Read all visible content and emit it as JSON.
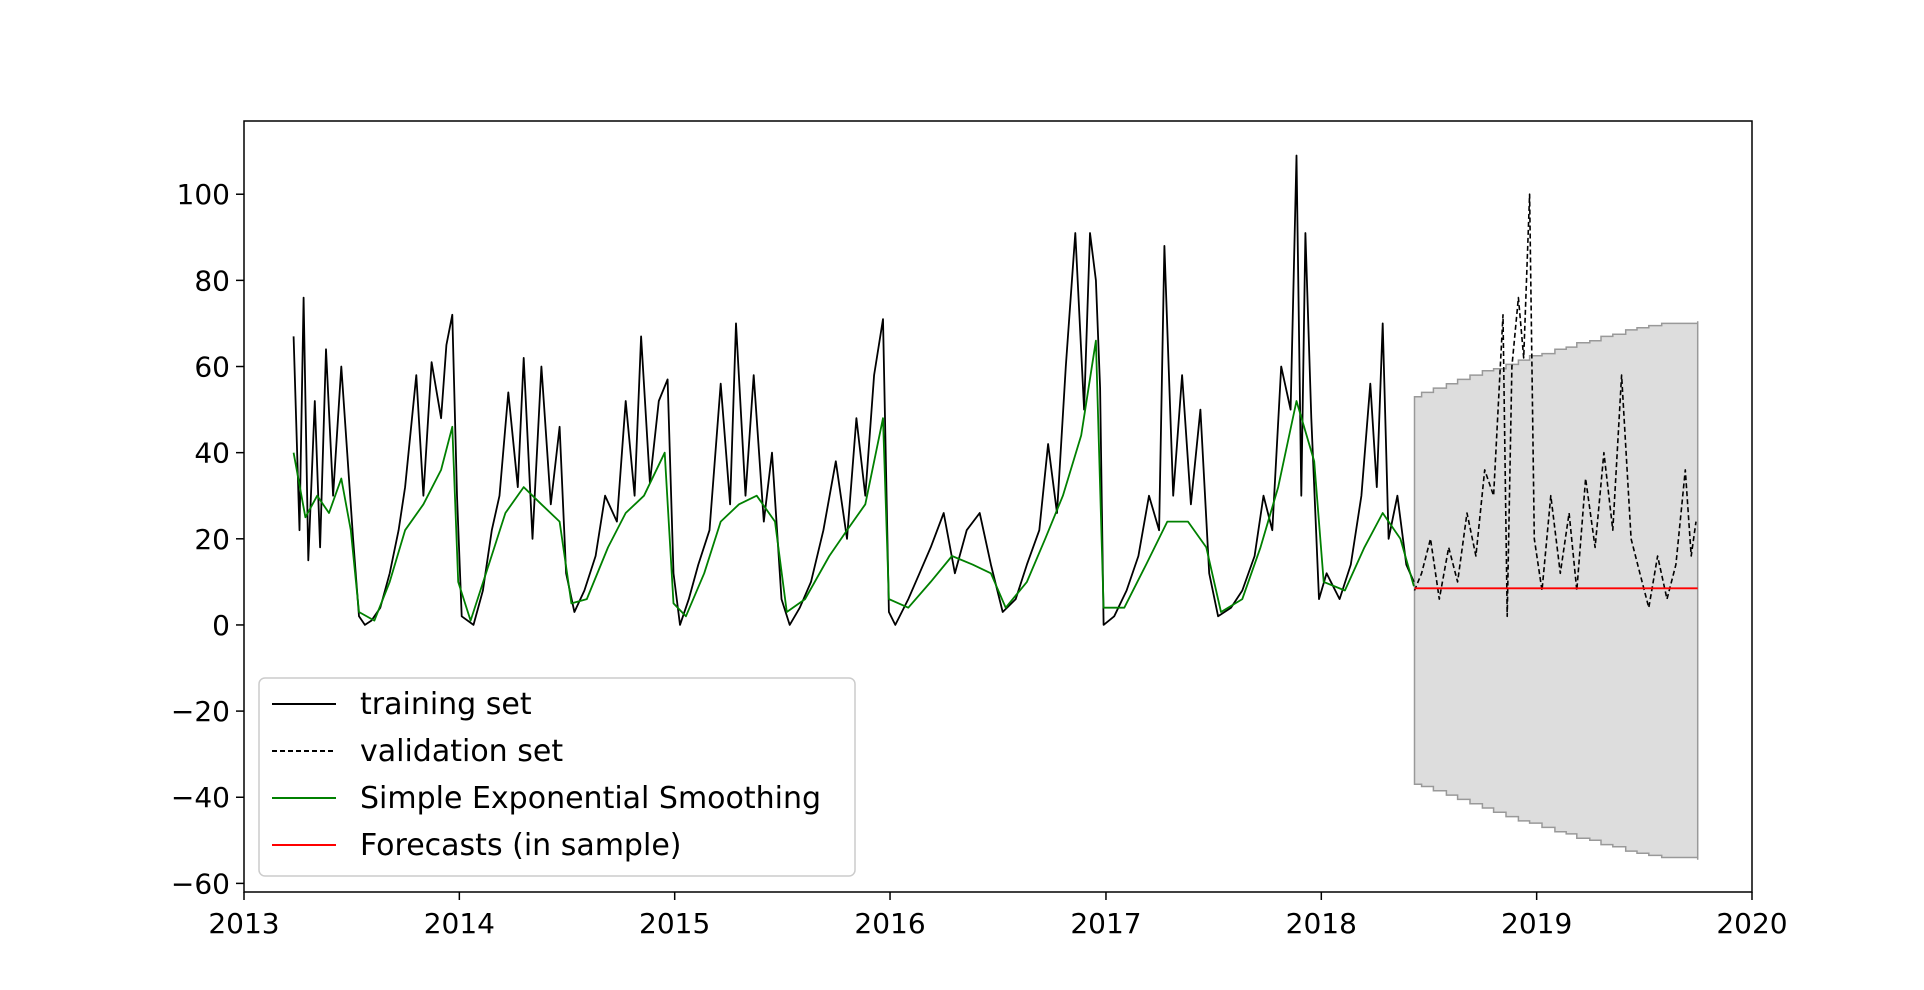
{
  "chart_data": {
    "type": "line",
    "title": "",
    "xlabel": "",
    "ylabel": "",
    "xlim": [
      "2013-01-01",
      "2020-01-01"
    ],
    "ylim": [
      -62,
      117
    ],
    "x_ticks": [
      {
        "value": "2013-01-01",
        "label": "2013"
      },
      {
        "value": "2014-01-01",
        "label": "2014"
      },
      {
        "value": "2015-01-01",
        "label": "2015"
      },
      {
        "value": "2016-01-01",
        "label": "2016"
      },
      {
        "value": "2017-01-01",
        "label": "2017"
      },
      {
        "value": "2018-01-01",
        "label": "2018"
      },
      {
        "value": "2019-01-01",
        "label": "2019"
      },
      {
        "value": "2020-01-01",
        "label": "2020"
      }
    ],
    "y_ticks": [
      {
        "value": 100,
        "label": "100"
      },
      {
        "value": 80,
        "label": "80"
      },
      {
        "value": 60,
        "label": "60"
      },
      {
        "value": 40,
        "label": "40"
      },
      {
        "value": 20,
        "label": "20"
      },
      {
        "value": 0,
        "label": "0"
      },
      {
        "value": -20,
        "label": "−20"
      },
      {
        "value": -40,
        "label": "−40"
      },
      {
        "value": -60,
        "label": "−60"
      }
    ],
    "grid": false,
    "legend_position": "lower-left",
    "series": [
      {
        "name": "training set",
        "style": "solid",
        "color": "#000000",
        "points": [
          [
            "2013-03-26",
            67
          ],
          [
            "2013-04-05",
            22
          ],
          [
            "2013-04-12",
            76
          ],
          [
            "2013-04-20",
            15
          ],
          [
            "2013-05-01",
            52
          ],
          [
            "2013-05-10",
            18
          ],
          [
            "2013-05-20",
            64
          ],
          [
            "2013-06-01",
            30
          ],
          [
            "2013-06-15",
            60
          ],
          [
            "2013-06-25",
            40
          ],
          [
            "2013-07-05",
            20
          ],
          [
            "2013-07-15",
            2
          ],
          [
            "2013-07-25",
            0
          ],
          [
            "2013-08-05",
            1
          ],
          [
            "2013-08-20",
            4
          ],
          [
            "2013-09-05",
            12
          ],
          [
            "2013-09-20",
            22
          ],
          [
            "2013-10-01",
            32
          ],
          [
            "2013-10-20",
            58
          ],
          [
            "2013-11-01",
            30
          ],
          [
            "2013-11-15",
            61
          ],
          [
            "2013-12-01",
            48
          ],
          [
            "2013-12-10",
            65
          ],
          [
            "2013-12-20",
            72
          ],
          [
            "2013-12-28",
            30
          ],
          [
            "2014-01-05",
            2
          ],
          [
            "2014-01-25",
            0
          ],
          [
            "2014-02-10",
            8
          ],
          [
            "2014-02-25",
            22
          ],
          [
            "2014-03-10",
            30
          ],
          [
            "2014-03-25",
            54
          ],
          [
            "2014-04-10",
            32
          ],
          [
            "2014-04-20",
            62
          ],
          [
            "2014-05-05",
            20
          ],
          [
            "2014-05-20",
            60
          ],
          [
            "2014-06-05",
            28
          ],
          [
            "2014-06-20",
            46
          ],
          [
            "2014-07-01",
            12
          ],
          [
            "2014-07-15",
            3
          ],
          [
            "2014-08-01",
            8
          ],
          [
            "2014-08-20",
            16
          ],
          [
            "2014-09-05",
            30
          ],
          [
            "2014-09-25",
            24
          ],
          [
            "2014-10-10",
            52
          ],
          [
            "2014-10-25",
            30
          ],
          [
            "2014-11-05",
            67
          ],
          [
            "2014-11-20",
            33
          ],
          [
            "2014-12-05",
            52
          ],
          [
            "2014-12-20",
            57
          ],
          [
            "2014-12-30",
            12
          ],
          [
            "2015-01-10",
            0
          ],
          [
            "2015-01-25",
            6
          ],
          [
            "2015-02-10",
            14
          ],
          [
            "2015-03-01",
            22
          ],
          [
            "2015-03-20",
            56
          ],
          [
            "2015-04-05",
            28
          ],
          [
            "2015-04-15",
            70
          ],
          [
            "2015-05-01",
            30
          ],
          [
            "2015-05-15",
            58
          ],
          [
            "2015-06-01",
            24
          ],
          [
            "2015-06-15",
            40
          ],
          [
            "2015-07-01",
            6
          ],
          [
            "2015-07-15",
            0
          ],
          [
            "2015-08-01",
            4
          ],
          [
            "2015-08-20",
            10
          ],
          [
            "2015-09-10",
            22
          ],
          [
            "2015-10-01",
            38
          ],
          [
            "2015-10-20",
            20
          ],
          [
            "2015-11-05",
            48
          ],
          [
            "2015-11-20",
            30
          ],
          [
            "2015-12-05",
            58
          ],
          [
            "2015-12-20",
            71
          ],
          [
            "2015-12-30",
            3
          ],
          [
            "2016-01-10",
            0
          ],
          [
            "2016-02-01",
            6
          ],
          [
            "2016-02-20",
            12
          ],
          [
            "2016-03-10",
            18
          ],
          [
            "2016-04-01",
            26
          ],
          [
            "2016-04-20",
            12
          ],
          [
            "2016-05-10",
            22
          ],
          [
            "2016-06-01",
            26
          ],
          [
            "2016-06-20",
            14
          ],
          [
            "2016-07-10",
            3
          ],
          [
            "2016-08-01",
            6
          ],
          [
            "2016-08-20",
            14
          ],
          [
            "2016-09-10",
            22
          ],
          [
            "2016-09-25",
            42
          ],
          [
            "2016-10-10",
            26
          ],
          [
            "2016-10-25",
            60
          ],
          [
            "2016-11-10",
            91
          ],
          [
            "2016-11-25",
            50
          ],
          [
            "2016-12-05",
            91
          ],
          [
            "2016-12-15",
            80
          ],
          [
            "2016-12-22",
            55
          ],
          [
            "2016-12-28",
            0
          ],
          [
            "2017-01-15",
            2
          ],
          [
            "2017-02-05",
            8
          ],
          [
            "2017-02-25",
            16
          ],
          [
            "2017-03-15",
            30
          ],
          [
            "2017-04-01",
            22
          ],
          [
            "2017-04-10",
            88
          ],
          [
            "2017-04-25",
            30
          ],
          [
            "2017-05-10",
            58
          ],
          [
            "2017-05-25",
            28
          ],
          [
            "2017-06-10",
            50
          ],
          [
            "2017-06-25",
            12
          ],
          [
            "2017-07-10",
            2
          ],
          [
            "2017-08-01",
            4
          ],
          [
            "2017-08-20",
            8
          ],
          [
            "2017-09-10",
            16
          ],
          [
            "2017-09-25",
            30
          ],
          [
            "2017-10-10",
            22
          ],
          [
            "2017-10-25",
            60
          ],
          [
            "2017-11-10",
            50
          ],
          [
            "2017-11-20",
            109
          ],
          [
            "2017-11-28",
            30
          ],
          [
            "2017-12-05",
            91
          ],
          [
            "2017-12-15",
            48
          ],
          [
            "2017-12-28",
            6
          ],
          [
            "2018-01-10",
            12
          ],
          [
            "2018-02-01",
            6
          ],
          [
            "2018-02-20",
            14
          ],
          [
            "2018-03-10",
            30
          ],
          [
            "2018-03-25",
            56
          ],
          [
            "2018-04-05",
            32
          ],
          [
            "2018-04-15",
            70
          ],
          [
            "2018-04-25",
            20
          ],
          [
            "2018-05-10",
            30
          ],
          [
            "2018-05-25",
            14
          ],
          [
            "2018-06-07",
            10
          ]
        ]
      },
      {
        "name": "validation set",
        "style": "dashed",
        "color": "#000000",
        "points": [
          [
            "2018-06-08",
            8
          ],
          [
            "2018-06-20",
            12
          ],
          [
            "2018-07-05",
            20
          ],
          [
            "2018-07-20",
            6
          ],
          [
            "2018-08-05",
            18
          ],
          [
            "2018-08-20",
            10
          ],
          [
            "2018-09-05",
            26
          ],
          [
            "2018-09-20",
            16
          ],
          [
            "2018-10-05",
            36
          ],
          [
            "2018-10-20",
            30
          ],
          [
            "2018-11-05",
            72
          ],
          [
            "2018-11-12",
            2
          ],
          [
            "2018-11-20",
            60
          ],
          [
            "2018-12-01",
            76
          ],
          [
            "2018-12-10",
            62
          ],
          [
            "2018-12-20",
            100
          ],
          [
            "2018-12-28",
            20
          ],
          [
            "2019-01-10",
            8
          ],
          [
            "2019-01-25",
            30
          ],
          [
            "2019-02-10",
            12
          ],
          [
            "2019-02-25",
            26
          ],
          [
            "2019-03-10",
            8
          ],
          [
            "2019-03-25",
            34
          ],
          [
            "2019-04-10",
            18
          ],
          [
            "2019-04-25",
            40
          ],
          [
            "2019-05-10",
            22
          ],
          [
            "2019-05-25",
            58
          ],
          [
            "2019-06-10",
            20
          ],
          [
            "2019-06-25",
            12
          ],
          [
            "2019-07-10",
            4
          ],
          [
            "2019-07-25",
            16
          ],
          [
            "2019-08-10",
            6
          ],
          [
            "2019-08-25",
            14
          ],
          [
            "2019-09-10",
            36
          ],
          [
            "2019-09-20",
            16
          ],
          [
            "2019-09-28",
            24
          ]
        ]
      },
      {
        "name": "Simple Exponential Smoothing",
        "style": "solid",
        "color": "#008000",
        "points": [
          [
            "2013-03-26",
            40
          ],
          [
            "2013-04-15",
            25
          ],
          [
            "2013-05-05",
            30
          ],
          [
            "2013-05-25",
            26
          ],
          [
            "2013-06-15",
            34
          ],
          [
            "2013-07-01",
            22
          ],
          [
            "2013-07-15",
            3
          ],
          [
            "2013-08-10",
            1
          ],
          [
            "2013-09-05",
            10
          ],
          [
            "2013-10-01",
            22
          ],
          [
            "2013-11-01",
            28
          ],
          [
            "2013-12-01",
            36
          ],
          [
            "2013-12-20",
            46
          ],
          [
            "2013-12-30",
            10
          ],
          [
            "2014-01-20",
            1
          ],
          [
            "2014-02-20",
            14
          ],
          [
            "2014-03-20",
            26
          ],
          [
            "2014-04-20",
            32
          ],
          [
            "2014-05-20",
            28
          ],
          [
            "2014-06-20",
            24
          ],
          [
            "2014-07-10",
            5
          ],
          [
            "2014-08-05",
            6
          ],
          [
            "2014-09-10",
            18
          ],
          [
            "2014-10-10",
            26
          ],
          [
            "2014-11-10",
            30
          ],
          [
            "2014-12-15",
            40
          ],
          [
            "2014-12-30",
            5
          ],
          [
            "2015-01-20",
            2
          ],
          [
            "2015-02-20",
            12
          ],
          [
            "2015-03-20",
            24
          ],
          [
            "2015-04-20",
            28
          ],
          [
            "2015-05-20",
            30
          ],
          [
            "2015-06-20",
            24
          ],
          [
            "2015-07-10",
            3
          ],
          [
            "2015-08-10",
            6
          ],
          [
            "2015-09-20",
            16
          ],
          [
            "2015-10-20",
            22
          ],
          [
            "2015-11-20",
            28
          ],
          [
            "2015-12-20",
            48
          ],
          [
            "2015-12-30",
            6
          ],
          [
            "2016-02-01",
            4
          ],
          [
            "2016-03-10",
            10
          ],
          [
            "2016-04-15",
            16
          ],
          [
            "2016-05-20",
            14
          ],
          [
            "2016-06-20",
            12
          ],
          [
            "2016-07-15",
            4
          ],
          [
            "2016-08-20",
            10
          ],
          [
            "2016-09-20",
            20
          ],
          [
            "2016-10-20",
            30
          ],
          [
            "2016-11-20",
            44
          ],
          [
            "2016-12-15",
            66
          ],
          [
            "2016-12-28",
            4
          ],
          [
            "2017-02-01",
            4
          ],
          [
            "2017-03-10",
            14
          ],
          [
            "2017-04-15",
            24
          ],
          [
            "2017-05-20",
            24
          ],
          [
            "2017-06-20",
            18
          ],
          [
            "2017-07-15",
            3
          ],
          [
            "2017-08-20",
            6
          ],
          [
            "2017-09-20",
            18
          ],
          [
            "2017-10-20",
            32
          ],
          [
            "2017-11-20",
            52
          ],
          [
            "2017-12-20",
            38
          ],
          [
            "2018-01-05",
            10
          ],
          [
            "2018-02-10",
            8
          ],
          [
            "2018-03-15",
            18
          ],
          [
            "2018-04-15",
            26
          ],
          [
            "2018-05-15",
            20
          ],
          [
            "2018-06-07",
            9
          ]
        ]
      },
      {
        "name": "Forecasts (in sample)",
        "style": "solid",
        "color": "#ff0000",
        "points": [
          [
            "2018-06-08",
            8.5
          ],
          [
            "2019-10-01",
            8.5
          ]
        ]
      }
    ],
    "confidence_band": {
      "color": "#dddddd",
      "edge_color": "#999999",
      "points": [
        [
          "2018-06-08",
          53,
          -37
        ],
        [
          "2018-06-20",
          54,
          -37.5
        ],
        [
          "2018-07-10",
          55,
          -38.5
        ],
        [
          "2018-08-01",
          56,
          -39.5
        ],
        [
          "2018-08-20",
          57,
          -40.5
        ],
        [
          "2018-09-10",
          58,
          -41.5
        ],
        [
          "2018-10-01",
          59,
          -42.5
        ],
        [
          "2018-10-20",
          59.5,
          -43.5
        ],
        [
          "2018-11-10",
          60.5,
          -44.5
        ],
        [
          "2018-12-01",
          61.5,
          -45.5
        ],
        [
          "2018-12-20",
          62.5,
          -46
        ],
        [
          "2019-01-10",
          63,
          -47
        ],
        [
          "2019-02-01",
          64,
          -48
        ],
        [
          "2019-02-20",
          64.5,
          -48.5
        ],
        [
          "2019-03-10",
          65.5,
          -49.5
        ],
        [
          "2019-04-01",
          66,
          -50
        ],
        [
          "2019-04-20",
          67,
          -51
        ],
        [
          "2019-05-10",
          67.5,
          -51.5
        ],
        [
          "2019-06-01",
          68.5,
          -52.5
        ],
        [
          "2019-06-20",
          69,
          -53
        ],
        [
          "2019-07-10",
          69.5,
          -53.5
        ],
        [
          "2019-08-01",
          70,
          -54
        ],
        [
          "2019-10-01",
          70.5,
          -54.5
        ]
      ]
    }
  }
}
